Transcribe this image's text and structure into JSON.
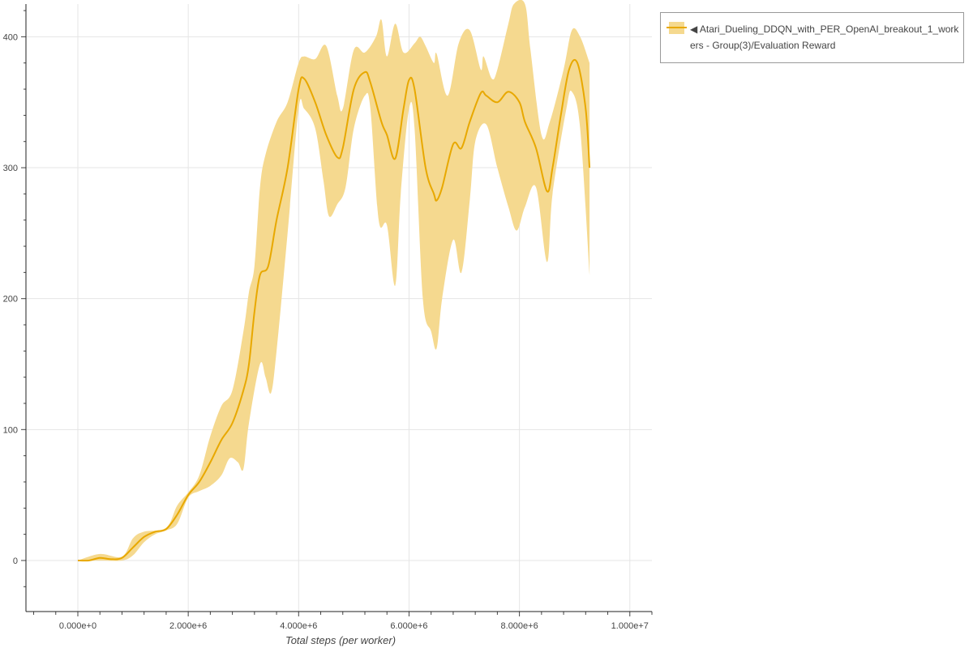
{
  "chart_data": {
    "type": "area",
    "title": "",
    "xlabel": "Total steps (per worker)",
    "ylabel": "",
    "xlim": [
      -940000,
      10400000
    ],
    "ylim": [
      -39,
      425
    ],
    "grid": true,
    "legend_placement": "outside-top-right",
    "x_ticks": [
      0,
      2000000,
      4000000,
      6000000,
      8000000,
      10000000
    ],
    "x_tick_labels": [
      "0.000e+0",
      "2.000e+6",
      "4.000e+6",
      "6.000e+6",
      "8.000e+6",
      "1.000e+7"
    ],
    "y_ticks": [
      0,
      100,
      200,
      300,
      400
    ],
    "y_tick_labels": [
      "0",
      "100",
      "200",
      "300",
      "400"
    ],
    "colors": {
      "line": "#e8a800",
      "band": "#f5d98f"
    },
    "series": [
      {
        "name": "◀ Atari_Dueling_DDQN_with_PER_OpenAI_breakout_1_workers - Group(3)/Evaluation Reward",
        "mean": {
          "x": [
            0,
            200000,
            400000,
            600000,
            800000,
            1000000,
            1200000,
            1400000,
            1600000,
            1800000,
            2000000,
            2200000,
            2400000,
            2600000,
            2800000,
            3000000,
            3100000,
            3200000,
            3300000,
            3450000,
            3600000,
            3800000,
            4000000,
            4100000,
            4300000,
            4500000,
            4700000,
            4800000,
            5000000,
            5200000,
            5300000,
            5500000,
            5600000,
            5750000,
            5900000,
            6000000,
            6100000,
            6300000,
            6450000,
            6500000,
            6600000,
            6800000,
            6950000,
            7100000,
            7300000,
            7400000,
            7600000,
            7800000,
            8000000,
            8100000,
            8300000,
            8500000,
            8600000,
            8750000,
            8900000,
            9050000,
            9200000,
            9270000
          ],
          "y": [
            0,
            0,
            2,
            1,
            2,
            10,
            18,
            22,
            24,
            35,
            50,
            60,
            75,
            92,
            105,
            130,
            150,
            190,
            218,
            225,
            260,
            300,
            360,
            368,
            350,
            325,
            308,
            315,
            360,
            373,
            365,
            335,
            325,
            307,
            345,
            367,
            360,
            300,
            280,
            275,
            285,
            318,
            315,
            335,
            357,
            355,
            350,
            358,
            350,
            335,
            315,
            282,
            300,
            340,
            375,
            380,
            345,
            300
          ]
        },
        "upper": {
          "x": [
            0,
            400000,
            800000,
            1000000,
            1200000,
            1600000,
            1800000,
            2000000,
            2200000,
            2400000,
            2600000,
            2800000,
            3000000,
            3100000,
            3200000,
            3300000,
            3400000,
            3600000,
            3800000,
            4000000,
            4100000,
            4300000,
            4500000,
            4700000,
            4800000,
            5000000,
            5200000,
            5400000,
            5500000,
            5600000,
            5750000,
            5900000,
            6100000,
            6200000,
            6300000,
            6450000,
            6500000,
            6700000,
            6900000,
            7100000,
            7300000,
            7350000,
            7500000,
            7600000,
            7800000,
            7900000,
            8100000,
            8200000,
            8400000,
            8550000,
            8800000,
            8950000,
            9100000,
            9270000
          ],
          "y": [
            0,
            5,
            3,
            17,
            22,
            25,
            42,
            52,
            65,
            95,
            118,
            130,
            175,
            205,
            225,
            285,
            310,
            335,
            350,
            380,
            385,
            383,
            393,
            355,
            345,
            390,
            388,
            400,
            413,
            385,
            410,
            388,
            395,
            400,
            393,
            380,
            387,
            355,
            395,
            405,
            375,
            385,
            368,
            375,
            410,
            425,
            425,
            390,
            325,
            335,
            375,
            405,
            400,
            380
          ]
        },
        "lower": {
          "x": [
            0,
            400000,
            800000,
            1000000,
            1200000,
            1400000,
            1600000,
            1800000,
            2000000,
            2200000,
            2400000,
            2600000,
            2750000,
            2900000,
            3000000,
            3100000,
            3300000,
            3400000,
            3500000,
            3600000,
            3800000,
            4000000,
            4100000,
            4300000,
            4450000,
            4550000,
            4700000,
            4850000,
            5000000,
            5200000,
            5300000,
            5450000,
            5600000,
            5750000,
            5850000,
            6000000,
            6100000,
            6250000,
            6400000,
            6500000,
            6600000,
            6800000,
            6950000,
            7100000,
            7200000,
            7400000,
            7600000,
            7800000,
            7950000,
            8100000,
            8300000,
            8500000,
            8600000,
            8850000,
            8950000,
            9100000,
            9270000
          ],
          "y": [
            0,
            0,
            0,
            4,
            14,
            20,
            23,
            28,
            48,
            53,
            57,
            65,
            78,
            75,
            70,
            105,
            150,
            140,
            128,
            160,
            250,
            345,
            345,
            330,
            290,
            263,
            272,
            285,
            330,
            355,
            345,
            260,
            256,
            210,
            280,
            345,
            330,
            200,
            175,
            162,
            200,
            245,
            220,
            275,
            320,
            333,
            300,
            270,
            252,
            270,
            285,
            228,
            280,
            345,
            358,
            330,
            218
          ]
        }
      }
    ]
  }
}
